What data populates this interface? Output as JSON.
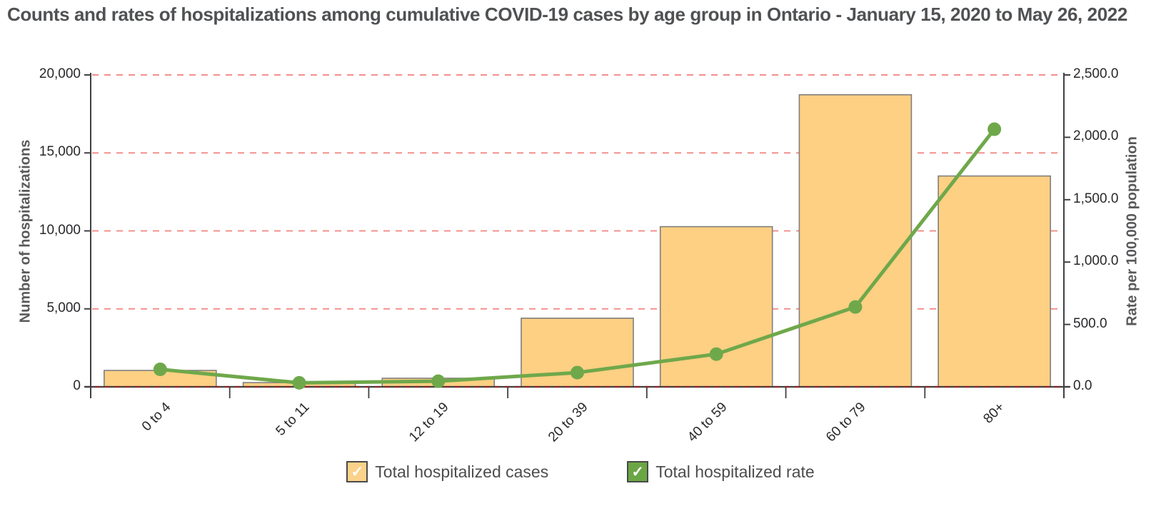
{
  "page": {
    "title": "Counts and rates of hospitalizations among cumulative COVID-19 cases by age group  in Ontario - January 15, 2020 to May 26, 2022"
  },
  "chart_data": {
    "type": "combo-bar-line",
    "categories": [
      "0 to 4",
      "5 to 11",
      "12 to 19",
      "20 to 39",
      "40 to 59",
      "60 to 79",
      "80+"
    ],
    "series": [
      {
        "name": "Total hospitalized cases",
        "type": "bar",
        "axis": "left",
        "values": [
          1050,
          270,
          550,
          4400,
          10270,
          18730,
          13520
        ],
        "fill_color": "#FDD083",
        "border_color": "#7F7F7F"
      },
      {
        "name": "Total hospitalized rate",
        "type": "line",
        "axis": "right",
        "values": [
          140,
          32,
          45,
          114,
          262,
          640,
          2065
        ],
        "color": "#6FA84B"
      }
    ],
    "left_axis": {
      "label": "Number of hospitalizations",
      "min": 0,
      "max": 20000,
      "tick_interval": 5000,
      "tick_labels": [
        "0",
        "5,000",
        "10,000",
        "15,000",
        "20,000"
      ]
    },
    "right_axis": {
      "label": "Rate per 100,000 population",
      "min": 0,
      "max": 2500,
      "tick_interval": 500,
      "tick_labels": [
        "0.0",
        "500.0",
        "1,000.0",
        "1,500.0",
        "2,000.0",
        "2,500.0"
      ]
    },
    "grid": {
      "show": true,
      "style": "dashed",
      "color": "#F2908C"
    },
    "baseline_colors": {
      "solid": "#3F3F3F",
      "dash": "#8E2424"
    },
    "axis_line_color": "#414042",
    "legend_position": "bottom"
  },
  "legend": {
    "items": [
      {
        "label": "Total hospitalized cases",
        "checkbox_color": "#FBD289",
        "checked": true,
        "checkmark": "✓"
      },
      {
        "label": "Total hospitalized rate",
        "checkbox_color": "#6BA644",
        "checked": true,
        "checkmark": "✓"
      }
    ]
  }
}
